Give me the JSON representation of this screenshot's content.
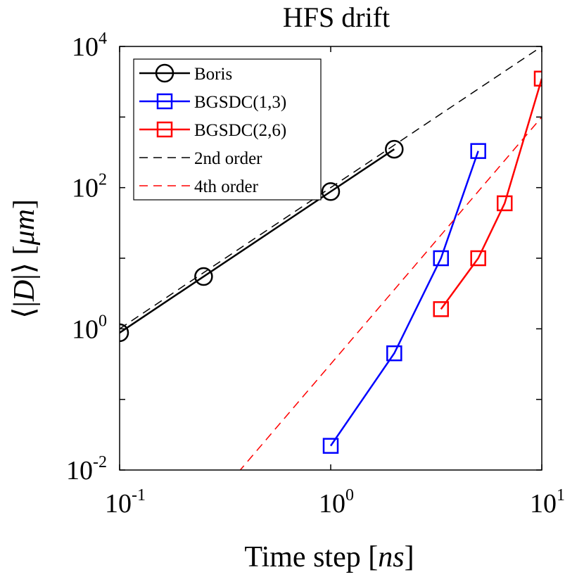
{
  "chart_data": {
    "type": "line",
    "title": "HFS drift",
    "xlabel": "Time step [ns]",
    "ylabel": "⟨|D|⟩ [μm]",
    "xscale": "log",
    "yscale": "log",
    "xlim": [
      0.1,
      10
    ],
    "ylim": [
      0.01,
      10000
    ],
    "xticks": [
      {
        "value": 0.1,
        "base": "10",
        "exp": "-1"
      },
      {
        "value": 1,
        "base": "10",
        "exp": "0"
      },
      {
        "value": 10,
        "base": "10",
        "exp": "1"
      }
    ],
    "yticks": [
      {
        "value": 0.01,
        "base": "10",
        "exp": "-2"
      },
      {
        "value": 1,
        "base": "10",
        "exp": "0"
      },
      {
        "value": 100,
        "base": "10",
        "exp": "2"
      },
      {
        "value": 10000,
        "base": "10",
        "exp": "4"
      }
    ],
    "legend_position": "top-left",
    "grid": false,
    "series": [
      {
        "name": "Boris",
        "color": "#000000",
        "marker": "circle",
        "linestyle": "solid",
        "x": [
          0.1,
          0.25,
          1,
          2
        ],
        "y": [
          0.88,
          5.5,
          88,
          350
        ]
      },
      {
        "name": "BGSDC(1,3)",
        "color": "#0000ff",
        "marker": "square",
        "linestyle": "solid",
        "x": [
          1,
          2,
          3.33,
          5
        ],
        "y": [
          0.022,
          0.45,
          10,
          330
        ]
      },
      {
        "name": "BGSDC(2,6)",
        "color": "#ff0000",
        "marker": "square",
        "linestyle": "solid",
        "x": [
          3.33,
          5,
          6.67,
          10
        ],
        "y": [
          1.9,
          10,
          60,
          3500
        ]
      },
      {
        "name": "2nd order",
        "color": "#000000",
        "marker": "none",
        "linestyle": "dashed",
        "x": [
          0.1,
          10
        ],
        "y": [
          1,
          10000
        ]
      },
      {
        "name": "4th order",
        "color": "#ff0000",
        "marker": "none",
        "linestyle": "dashed",
        "x": [
          0.1,
          10
        ],
        "y": [
          0.0001,
          1000
        ]
      }
    ]
  }
}
